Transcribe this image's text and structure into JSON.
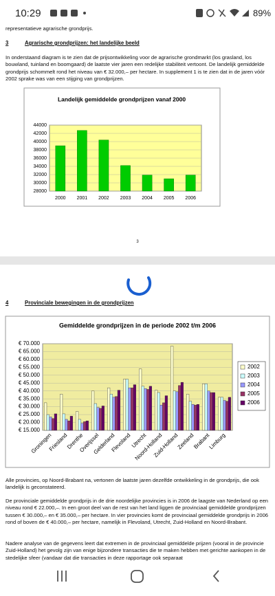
{
  "status_bar": {
    "time": "10:29",
    "battery": "89%"
  },
  "document": {
    "top_line": "representatieve agrarische grondprijs.",
    "section3": {
      "number": "3",
      "heading": "Agrarische grondprijzen: het landelijke beeld",
      "paragraph": "In onderstaand diagram is te zien dat de prijsontwikkeling voor de agrarische grondmarkt (los grasland, los bouwland, tuinland en boomgaard) de laatste vier jaren een redelijke stabiliteit vertoont. De landelijk gemiddelde grondprijs schommelt rond het niveau van € 32.000,– per hectare. In supplement 1 is te zien dat in de jaren vóór 2002 sprake was van een stijging van grondprijzen."
    },
    "page_number": "3",
    "section4": {
      "number": "4",
      "heading": "Provinciale bewegingen in de grondprijzen",
      "paragraphs": [
        "Alle provincies, op Noord-Brabant na, vertonen de laatste jaren dezelfde ontwikkeling in de grondprijs, die ook landelijk is geconstateerd.",
        "De provinciale gemiddelde grondprijs in de drie noordelijke provincies is in 2006 de laagste van Nederland op een niveau rond € 22.000,–. In een groot deel van de rest van het land liggen de provinciaal gemiddelde grondprijzen tussen € 30.000,– en € 35.000,– per hectare. In vier provincies komt de provinciaal gemiddelde grondprijs in 2006 rond of boven de € 40.000,– per hectare, namelijk in Flevoland, Utrecht, Zuid-Holland en Noord-Brabant.",
        "Nadere analyse van de gegevens leert dat extremen in de provinciaal gemiddelde prijzen (vooral in de provincie Zuid-Holland) het gevolg zijn van enige bijzondere transacties die te maken hebben met gerichte aankopen in de stedelijke sfeer (vandaar dat die transacties in deze rapportage ook separaat"
      ]
    }
  },
  "chart_data": [
    {
      "type": "bar",
      "title": "Landelijk gemiddelde grondprijzen vanaf  2000",
      "categories": [
        "2000",
        "2001",
        "2002",
        "2003",
        "2004",
        "2005",
        "2006"
      ],
      "values": [
        39000,
        42700,
        40400,
        34200,
        31900,
        31000,
        31900
      ],
      "color": "#00cc00",
      "ylim": [
        28000,
        44000
      ],
      "yticks": [
        28000,
        30000,
        32000,
        34000,
        36000,
        38000,
        40000,
        42000,
        44000
      ],
      "grid": true
    },
    {
      "type": "bar",
      "title": "Gemiddelde grondprijzen in de periode 2002 t/m 2006",
      "categories": [
        "Groningen",
        "Friesland",
        "Drenthe",
        "Overijssel",
        "Gelderland",
        "Flevoland",
        "Utrecht",
        "Noord-Holland",
        "Zuid-Holland",
        "Zeeland",
        "Brabant",
        "Limburg"
      ],
      "series": [
        {
          "name": "2002",
          "color": "#ffffcc",
          "values": [
            32500,
            38000,
            27000,
            40000,
            42000,
            47500,
            54000,
            40500,
            68500,
            38000,
            44500,
            36000
          ]
        },
        {
          "name": "2003",
          "color": "#ccffff",
          "values": [
            25000,
            25500,
            22000,
            32000,
            38000,
            47500,
            43000,
            39000,
            40000,
            33500,
            44500,
            36000
          ]
        },
        {
          "name": "2004",
          "color": "#9999ff",
          "values": [
            23500,
            22000,
            19500,
            29500,
            36000,
            42000,
            41500,
            31000,
            39500,
            31500,
            40000,
            34000
          ]
        },
        {
          "name": "2005",
          "color": "#993366",
          "values": [
            22500,
            21000,
            20500,
            29000,
            36500,
            42000,
            41000,
            32500,
            43500,
            31000,
            39000,
            33500
          ]
        },
        {
          "name": "2006",
          "color": "#660066",
          "values": [
            25500,
            24000,
            21000,
            30500,
            40500,
            44000,
            43000,
            37000,
            45500,
            31500,
            39000,
            36000
          ]
        }
      ],
      "ylim": [
        15000,
        70000
      ],
      "yticks": [
        {
          "value": 15000,
          "label": "€ 15.000"
        },
        {
          "value": 20000,
          "label": "€ 20.000"
        },
        {
          "value": 25000,
          "label": "€ 25.000"
        },
        {
          "value": 30000,
          "label": "€ 30.000"
        },
        {
          "value": 35000,
          "label": "€ 35.000"
        },
        {
          "value": 40000,
          "label": "€ 40.000"
        },
        {
          "value": 45000,
          "label": "€ 45.000"
        },
        {
          "value": 50000,
          "label": "€ 50.000"
        },
        {
          "value": 55000,
          "label": "€ 55.000"
        },
        {
          "value": 60000,
          "label": "€ 60.000"
        },
        {
          "value": 65000,
          "label": "€ 65.000"
        },
        {
          "value": 70000,
          "label": "€ 70.000"
        }
      ],
      "grid": true,
      "legend": "right"
    }
  ]
}
